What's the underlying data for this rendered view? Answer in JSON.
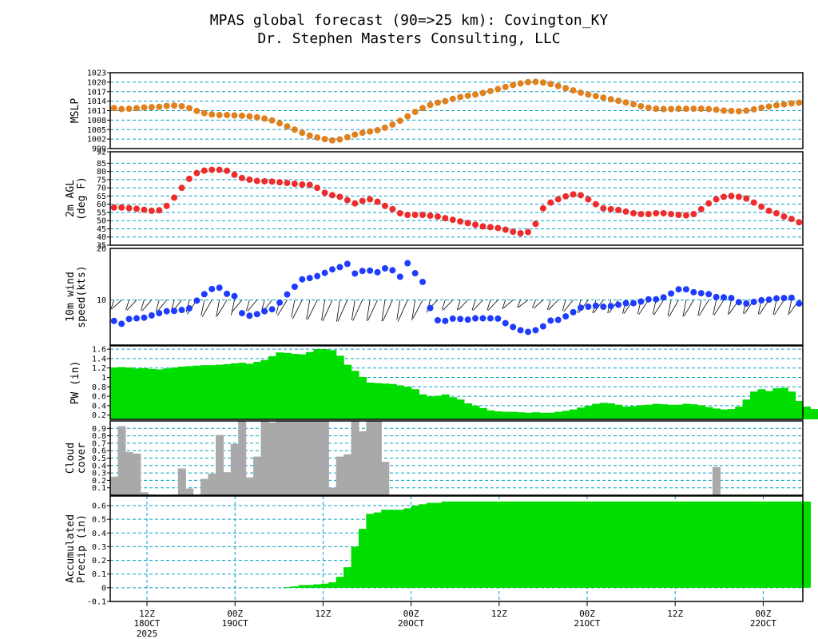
{
  "header": {
    "title_line1": "MPAS global forecast (90=>25 km): Covington_KY",
    "title_line2": "Dr. Stephen Masters Consulting, LLC"
  },
  "colors": {
    "mslp": "#e0801e",
    "temp": "#ee2c2c",
    "wind": "#1e3cff",
    "pw": "#00dd00",
    "cloud": "#a9a9a9",
    "precip": "#00dd00",
    "grid": "#00a0c8"
  },
  "chart_data": [
    {
      "type": "line",
      "id": "mslp",
      "ylabel": "MSLP",
      "ylim": [
        999,
        1023
      ],
      "yticks": [
        999,
        1002,
        1005,
        1008,
        1011,
        1014,
        1017,
        1020,
        1023
      ],
      "grid": true,
      "values": [
        1011.8,
        1011.5,
        1011.6,
        1011.8,
        1012.0,
        1012.1,
        1012.2,
        1012.5,
        1012.6,
        1012.4,
        1011.8,
        1010.9,
        1010.2,
        1009.8,
        1009.6,
        1009.6,
        1009.5,
        1009.4,
        1009.2,
        1008.9,
        1008.5,
        1007.9,
        1007.0,
        1006.0,
        1005.0,
        1004.0,
        1003.1,
        1002.5,
        1002.0,
        1001.6,
        1001.9,
        1002.6,
        1003.4,
        1004.0,
        1004.4,
        1004.8,
        1005.6,
        1006.6,
        1007.8,
        1009.2,
        1010.6,
        1011.8,
        1012.8,
        1013.5,
        1014.0,
        1014.7,
        1015.3,
        1015.7,
        1016.1,
        1016.6,
        1017.2,
        1017.8,
        1018.5,
        1019.1,
        1019.6,
        1020.0,
        1020.1,
        1019.9,
        1019.4,
        1018.8,
        1018.1,
        1017.4,
        1016.7,
        1016.1,
        1015.6,
        1015.1,
        1014.6,
        1014.1,
        1013.6,
        1013.0,
        1012.4,
        1011.9,
        1011.6,
        1011.5,
        1011.5,
        1011.6,
        1011.6,
        1011.6,
        1011.6,
        1011.5,
        1011.3,
        1011.0,
        1010.9,
        1010.8,
        1011.0,
        1011.4,
        1011.9,
        1012.3,
        1012.7,
        1013.0,
        1013.3,
        1013.5
      ]
    },
    {
      "type": "line",
      "id": "temp",
      "ylabel": "2m AGL",
      "ylabel2": "(deg F)",
      "ylim": [
        35,
        92
      ],
      "yticks": [
        35,
        40,
        45,
        50,
        55,
        60,
        65,
        70,
        75,
        80,
        85,
        92
      ],
      "grid": true,
      "values": [
        58,
        58,
        57.6,
        57.2,
        56.6,
        56,
        56.3,
        59,
        64,
        70,
        75.5,
        79,
        80.5,
        81,
        81,
        80.4,
        78,
        76,
        75,
        74.2,
        74,
        73.8,
        73.4,
        73,
        72.5,
        72,
        71.8,
        70,
        67,
        65.5,
        64.5,
        62.5,
        60.5,
        62,
        63,
        61.5,
        59,
        57,
        54.5,
        53.5,
        53.5,
        53.5,
        53,
        52.5,
        51.5,
        50.5,
        49.5,
        48.5,
        47.5,
        46.5,
        46,
        45.5,
        44.5,
        43.2,
        42.3,
        43,
        48,
        57.5,
        61,
        63,
        64.8,
        66,
        65.5,
        63,
        60,
        57.5,
        57,
        56.5,
        55.5,
        54.5,
        54,
        54,
        54.5,
        54.5,
        54,
        53.5,
        53.2,
        54,
        57,
        60.5,
        63,
        64.5,
        65,
        64.5,
        63.5,
        61,
        58.5,
        56,
        54.5,
        52.5,
        51,
        49
      ]
    },
    {
      "type": "scatter",
      "id": "wind",
      "ylabel": "10m wind",
      "ylabel2": "speed(kts)",
      "ylim": [
        -4,
        26
      ],
      "ytick_labels": [
        {
          "value": 10,
          "label": "10"
        },
        {
          "value": 26,
          "label": "26"
        }
      ],
      "grid": true,
      "values": [
        3.5,
        2.6,
        4.1,
        4.3,
        4.5,
        5.2,
        5.9,
        6.5,
        6.6,
        6.9,
        7.4,
        9.8,
        11.8,
        13.4,
        13.8,
        11.9,
        11.2,
        5.9,
        5.1,
        5.6,
        6.5,
        7.1,
        9.2,
        11.7,
        14.1,
        16.4,
        16.8,
        17.4,
        18.4,
        19.5,
        20.2,
        21.2,
        18.2,
        19.0,
        19.1,
        18.6,
        19.8,
        19.2,
        17.2,
        21.4,
        18.3,
        15.6,
        7.5,
        3.7,
        3.5,
        4.2,
        4.1,
        3.9,
        4.3,
        4.3,
        4.3,
        4.2,
        2.8,
        1.6,
        0.6,
        0.1,
        0.6,
        1.8,
        3.6,
        3.8,
        4.9,
        6.2,
        7.6,
        7.9,
        8.2,
        7.9,
        8.1,
        8.5,
        9.0,
        9.0,
        9.5,
        10.2,
        10.2,
        10.8,
        12.0,
        13.3,
        13.3,
        12.4,
        12.1,
        11.8,
        10.9,
        10.8,
        10.6,
        9.3,
        8.9,
        9.4,
        9.9,
        10.1,
        10.5,
        10.6,
        10.7,
        8.9
      ]
    },
    {
      "type": "area",
      "id": "pw",
      "ylabel": "PW (in)",
      "ylim": [
        0.11,
        1.67
      ],
      "yticks": [
        0.2,
        0.4,
        0.6,
        0.8,
        1,
        1.2,
        1.4,
        1.6
      ],
      "tick_labels": [
        "0.2",
        "0.4",
        "0.6",
        "0.8",
        "1",
        "1.2",
        "1.4",
        "1.6"
      ],
      "grid": true,
      "values": [
        1.21,
        1.22,
        1.21,
        1.19,
        1.2,
        1.18,
        1.17,
        1.19,
        1.21,
        1.23,
        1.24,
        1.25,
        1.26,
        1.26,
        1.27,
        1.28,
        1.3,
        1.31,
        1.29,
        1.33,
        1.37,
        1.45,
        1.53,
        1.52,
        1.5,
        1.49,
        1.54,
        1.6,
        1.6,
        1.58,
        1.46,
        1.27,
        1.14,
        1.01,
        0.89,
        0.88,
        0.87,
        0.86,
        0.83,
        0.8,
        0.75,
        0.64,
        0.6,
        0.61,
        0.64,
        0.58,
        0.53,
        0.45,
        0.4,
        0.35,
        0.3,
        0.28,
        0.27,
        0.27,
        0.26,
        0.25,
        0.26,
        0.25,
        0.25,
        0.27,
        0.29,
        0.32,
        0.36,
        0.4,
        0.44,
        0.46,
        0.45,
        0.42,
        0.38,
        0.39,
        0.41,
        0.42,
        0.44,
        0.43,
        0.42,
        0.42,
        0.44,
        0.43,
        0.41,
        0.37,
        0.34,
        0.32,
        0.33,
        0.38,
        0.53,
        0.7,
        0.75,
        0.71,
        0.77,
        0.78,
        0.7,
        0.5,
        0.38,
        0.33,
        0.26,
        0.27
      ]
    },
    {
      "type": "bar",
      "id": "cloud",
      "ylabel": "Cloud",
      "ylabel2": "cover",
      "ylim": [
        0,
        1
      ],
      "yticks": [
        0.1,
        0.2,
        0.3,
        0.4,
        0.5,
        0.6,
        0.7,
        0.8,
        0.9
      ],
      "tick_labels": [
        "0.1",
        "0.2",
        "0.3",
        "0.4",
        "0.5",
        "0.6",
        "0.7",
        "0.8",
        "0.9"
      ],
      "grid": true,
      "values": [
        0.25,
        0.93,
        0.58,
        0.56,
        0.04,
        0.01,
        0,
        0,
        0.01,
        0.36,
        0.09,
        0.01,
        0.22,
        0.29,
        0.81,
        0.31,
        0.69,
        1.02,
        0.24,
        0.52,
        1.02,
        0.98,
        1.02,
        1.02,
        1.02,
        1.0,
        1.02,
        1.02,
        1.0,
        0.1,
        0.52,
        0.55,
        1.02,
        0.86,
        1.02,
        1.02,
        0.45,
        0,
        0,
        0,
        0,
        0,
        0,
        0,
        0,
        0,
        0,
        0,
        0,
        0,
        0,
        0,
        0,
        0,
        0,
        0,
        0,
        0,
        0,
        0,
        0,
        0,
        0,
        0,
        0,
        0,
        0,
        0,
        0,
        0,
        0,
        0,
        0,
        0,
        0,
        0,
        0,
        0,
        0,
        0,
        0.38,
        0,
        0,
        0,
        0,
        0,
        0,
        0,
        0,
        0,
        0,
        0,
        0,
        0,
        0
      ]
    },
    {
      "type": "area",
      "id": "precip",
      "ylabel": "Accumulated",
      "ylabel2": "Precip (in)",
      "ylim": [
        -0.1,
        0.67
      ],
      "yticks": [
        -0.1,
        0,
        0.1,
        0.2,
        0.3,
        0.4,
        0.5,
        0.6
      ],
      "tick_labels": [
        "-0.1",
        "0",
        "0.1",
        "0.2",
        "0.3",
        "0.4",
        "0.5",
        "0.6"
      ],
      "grid": true,
      "values": [
        0,
        0,
        0,
        0,
        0,
        0,
        0,
        0,
        0,
        0,
        0,
        0,
        0,
        0,
        0,
        0,
        0,
        0,
        0,
        0,
        0,
        0,
        0,
        0.005,
        0.01,
        0.02,
        0.02,
        0.025,
        0.03,
        0.04,
        0.08,
        0.15,
        0.3,
        0.43,
        0.54,
        0.55,
        0.57,
        0.57,
        0.57,
        0.58,
        0.6,
        0.61,
        0.62,
        0.62,
        0.63,
        0.63,
        0.63,
        0.63,
        0.63,
        0.63,
        0.63,
        0.63,
        0.63,
        0.63,
        0.63,
        0.63,
        0.63,
        0.63,
        0.63,
        0.63,
        0.63,
        0.63,
        0.63,
        0.63,
        0.63,
        0.63,
        0.63,
        0.63,
        0.63,
        0.63,
        0.63,
        0.63,
        0.63,
        0.63,
        0.63,
        0.63,
        0.63,
        0.63,
        0.63,
        0.63,
        0.63,
        0.63,
        0.63,
        0.63,
        0.63,
        0.63,
        0.63,
        0.63,
        0.63,
        0.63,
        0.63,
        0.63,
        0.63
      ]
    }
  ],
  "xaxis": {
    "ticks": [
      {
        "line1": "12Z",
        "line2": "18OCT",
        "line3": "2025",
        "vgrid": false
      },
      {
        "line1": "00Z",
        "line2": "19OCT",
        "line3": "",
        "vgrid": true
      },
      {
        "line1": "12Z",
        "line2": "",
        "line3": "",
        "vgrid": true
      },
      {
        "line1": "00Z",
        "line2": "20OCT",
        "line3": "",
        "vgrid": true
      },
      {
        "line1": "12Z",
        "line2": "",
        "line3": "",
        "vgrid": true
      },
      {
        "line1": "00Z",
        "line2": "21OCT",
        "line3": "",
        "vgrid": true
      },
      {
        "line1": "12Z",
        "line2": "",
        "line3": "",
        "vgrid": true
      },
      {
        "line1": "00Z",
        "line2": "22OCT",
        "line3": "",
        "vgrid": true
      }
    ]
  }
}
